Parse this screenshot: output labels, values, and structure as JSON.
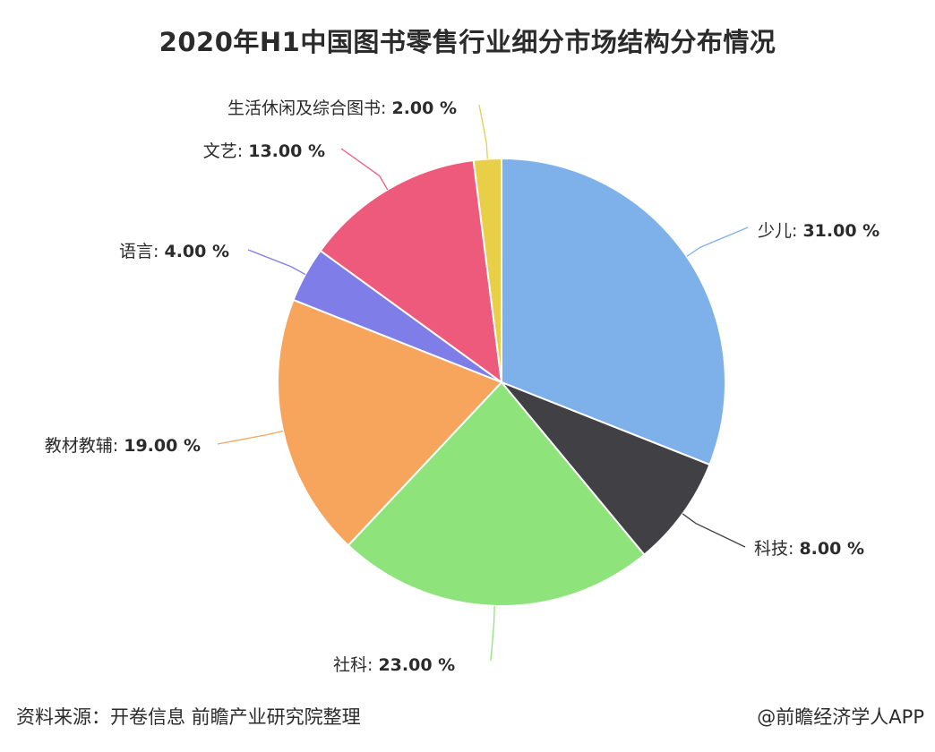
{
  "chart_data": {
    "type": "pie",
    "title": "2020年H1中国图书零售行业细分市场结构分布情况",
    "slices": [
      {
        "label": "少儿",
        "value": 31.0,
        "value_text": "31.00 %",
        "color": "#7eb1ea"
      },
      {
        "label": "科技",
        "value": 8.0,
        "value_text": "8.00 %",
        "color": "#414045"
      },
      {
        "label": "社科",
        "value": 23.0,
        "value_text": "23.00 %",
        "color": "#8fe37b"
      },
      {
        "label": "教材教辅",
        "value": 19.0,
        "value_text": "19.00 %",
        "color": "#f7a55c"
      },
      {
        "label": "语言",
        "value": 4.0,
        "value_text": "4.00 %",
        "color": "#7f7de8"
      },
      {
        "label": "文艺",
        "value": 13.0,
        "value_text": "13.00 %",
        "color": "#ee5a7c"
      },
      {
        "label": "生活休闲及综合图书",
        "value": 2.0,
        "value_text": "2.00 %",
        "color": "#e9cf47"
      }
    ]
  },
  "footer": {
    "source": "资料来源：开卷信息 前瞻产业研究院整理",
    "credit": "@前瞻经济学人APP"
  }
}
